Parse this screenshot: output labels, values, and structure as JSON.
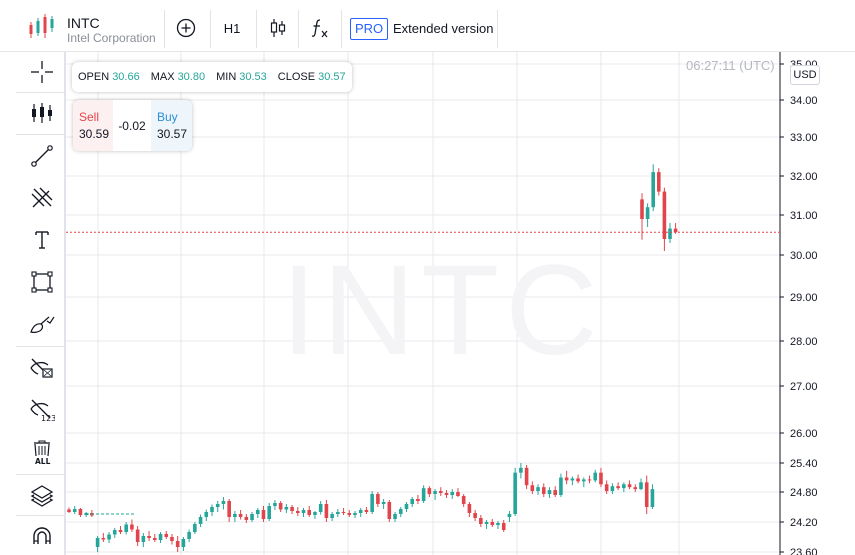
{
  "header": {
    "ticker": "INTC",
    "company": "Intel Corporation",
    "interval": "H1",
    "pro_badge": "PRO",
    "extended_label": "Extended version"
  },
  "toolbar_icons": [
    "crosshair-icon",
    "indicators-icon",
    "trend-line-icon",
    "pitchfork-icon",
    "text-icon",
    "rectangle-icon",
    "brush-icon",
    "hide-drawings-icon",
    "hide-indicators-icon",
    "delete-all-icon",
    "layers-icon",
    "magnet-icon"
  ],
  "chart": {
    "watermark": "INTC",
    "clock": "06:27:11 (UTC)",
    "currency": "USD",
    "ohlc": {
      "open_label": "OPEN",
      "open": "30.66",
      "max_label": "MAX",
      "max": "30.80",
      "min_label": "MIN",
      "min": "30.53",
      "close_label": "CLOSE",
      "close": "30.57"
    },
    "trade": {
      "sell_label": "Sell",
      "sell_price": "30.59",
      "spread": "-0.02",
      "buy_label": "Buy",
      "buy_price": "30.57"
    },
    "price_line": 30.57,
    "colors": {
      "up": "#26a69a",
      "down": "#e0454b",
      "brand_red": "#e0454b",
      "brand_green": "#26a69a",
      "accent": "#2962ff"
    }
  },
  "chart_data": {
    "type": "candlestick",
    "y_ticks": [
      "23.60",
      "24.20",
      "24.80",
      "25.40",
      "26.00",
      "27.00",
      "28.00",
      "29.00",
      "30.00",
      "31.00",
      "32.00",
      "33.00",
      "34.00",
      "35.00"
    ],
    "candles": [
      [
        24.45,
        24.49,
        24.38,
        24.4
      ],
      [
        24.4,
        24.52,
        24.36,
        24.46
      ],
      [
        24.46,
        24.48,
        24.3,
        24.34
      ],
      [
        24.34,
        24.4,
        24.3,
        24.38
      ],
      [
        24.38,
        24.44,
        24.3,
        24.33
      ],
      [
        23.7,
        23.92,
        23.6,
        23.88
      ],
      [
        23.88,
        23.98,
        23.8,
        23.85
      ],
      [
        23.85,
        24.0,
        23.78,
        23.95
      ],
      [
        23.95,
        24.08,
        23.88,
        24.04
      ],
      [
        24.04,
        24.12,
        23.96,
        24.0
      ],
      [
        24.0,
        24.2,
        23.95,
        24.15
      ],
      [
        24.15,
        24.25,
        24.0,
        24.05
      ],
      [
        24.05,
        24.12,
        23.72,
        23.8
      ],
      [
        23.8,
        23.98,
        23.7,
        23.92
      ],
      [
        23.92,
        24.02,
        23.82,
        23.88
      ],
      [
        23.88,
        23.96,
        23.8,
        23.84
      ],
      [
        23.84,
        24.0,
        23.78,
        23.96
      ],
      [
        23.96,
        24.02,
        23.86,
        23.9
      ],
      [
        23.9,
        23.96,
        23.75,
        23.82
      ],
      [
        23.82,
        23.92,
        23.6,
        23.7
      ],
      [
        23.7,
        23.9,
        23.62,
        23.86
      ],
      [
        23.86,
        24.05,
        23.8,
        24.0
      ],
      [
        24.0,
        24.2,
        23.96,
        24.16
      ],
      [
        24.16,
        24.35,
        24.1,
        24.3
      ],
      [
        24.3,
        24.45,
        24.22,
        24.4
      ],
      [
        24.4,
        24.55,
        24.32,
        24.5
      ],
      [
        24.5,
        24.62,
        24.4,
        24.56
      ],
      [
        24.56,
        24.7,
        24.45,
        24.62
      ],
      [
        24.62,
        24.66,
        24.2,
        24.3
      ],
      [
        24.3,
        24.42,
        24.2,
        24.36
      ],
      [
        24.36,
        24.44,
        24.25,
        24.3
      ],
      [
        24.3,
        24.36,
        24.18,
        24.24
      ],
      [
        24.24,
        24.4,
        24.2,
        24.36
      ],
      [
        24.36,
        24.48,
        24.28,
        24.44
      ],
      [
        24.44,
        24.52,
        24.2,
        24.26
      ],
      [
        24.26,
        24.58,
        24.22,
        24.52
      ],
      [
        24.52,
        24.64,
        24.44,
        24.58
      ],
      [
        24.58,
        24.62,
        24.4,
        24.45
      ],
      [
        24.45,
        24.56,
        24.38,
        24.5
      ],
      [
        24.5,
        24.54,
        24.36,
        24.42
      ],
      [
        24.42,
        24.5,
        24.32,
        24.38
      ],
      [
        24.38,
        24.48,
        24.3,
        24.44
      ],
      [
        24.44,
        24.52,
        24.3,
        24.34
      ],
      [
        24.34,
        24.42,
        24.26,
        24.4
      ],
      [
        24.4,
        24.62,
        24.35,
        24.56
      ],
      [
        24.56,
        24.64,
        24.2,
        24.28
      ],
      [
        24.28,
        24.4,
        24.22,
        24.36
      ],
      [
        24.36,
        24.46,
        24.3,
        24.4
      ],
      [
        24.4,
        24.48,
        24.34,
        24.38
      ],
      [
        24.38,
        24.44,
        24.3,
        24.34
      ],
      [
        24.34,
        24.42,
        24.28,
        24.38
      ],
      [
        24.38,
        24.48,
        24.3,
        24.44
      ],
      [
        24.44,
        24.5,
        24.36,
        24.4
      ],
      [
        24.4,
        24.82,
        24.36,
        24.76
      ],
      [
        24.76,
        24.8,
        24.5,
        24.56
      ],
      [
        24.56,
        24.66,
        24.46,
        24.6
      ],
      [
        24.6,
        24.64,
        24.2,
        24.26
      ],
      [
        24.26,
        24.4,
        24.2,
        24.36
      ],
      [
        24.36,
        24.5,
        24.3,
        24.46
      ],
      [
        24.46,
        24.6,
        24.4,
        24.56
      ],
      [
        24.56,
        24.7,
        24.5,
        24.66
      ],
      [
        24.66,
        24.74,
        24.56,
        24.62
      ],
      [
        24.62,
        24.94,
        24.58,
        24.88
      ],
      [
        24.88,
        24.92,
        24.7,
        24.76
      ],
      [
        24.76,
        24.86,
        24.64,
        24.82
      ],
      [
        24.82,
        24.9,
        24.72,
        24.78
      ],
      [
        24.78,
        24.84,
        24.68,
        24.74
      ],
      [
        24.74,
        24.86,
        24.66,
        24.8
      ],
      [
        24.8,
        24.88,
        24.7,
        24.72
      ],
      [
        24.72,
        24.76,
        24.5,
        24.56
      ],
      [
        24.56,
        24.6,
        24.3,
        24.38
      ],
      [
        24.38,
        24.44,
        24.22,
        24.28
      ],
      [
        24.28,
        24.34,
        24.1,
        24.16
      ],
      [
        24.16,
        24.24,
        24.06,
        24.2
      ],
      [
        24.2,
        24.26,
        24.1,
        24.14
      ],
      [
        24.14,
        24.22,
        24.06,
        24.18
      ],
      [
        24.18,
        24.24,
        24.0,
        24.04
      ],
      [
        24.3,
        24.42,
        24.2,
        24.36
      ],
      [
        24.36,
        25.3,
        24.32,
        25.2
      ],
      [
        25.2,
        25.4,
        25.08,
        25.3
      ],
      [
        25.3,
        25.36,
        24.86,
        24.94
      ],
      [
        24.94,
        25.02,
        24.76,
        24.82
      ],
      [
        24.82,
        24.96,
        24.74,
        24.9
      ],
      [
        24.9,
        24.98,
        24.7,
        24.76
      ],
      [
        24.76,
        24.9,
        24.68,
        24.84
      ],
      [
        24.84,
        24.92,
        24.7,
        24.74
      ],
      [
        24.74,
        25.18,
        24.7,
        25.1
      ],
      [
        25.1,
        25.24,
        24.96,
        25.04
      ],
      [
        25.04,
        25.12,
        24.94,
        25.08
      ],
      [
        25.08,
        25.16,
        24.98,
        25.02
      ],
      [
        25.02,
        25.1,
        24.9,
        25.06
      ],
      [
        25.06,
        25.14,
        24.98,
        25.04
      ],
      [
        25.04,
        25.26,
        25.0,
        25.2
      ],
      [
        25.2,
        25.3,
        24.9,
        24.96
      ],
      [
        24.96,
        25.04,
        24.76,
        24.82
      ],
      [
        24.82,
        24.98,
        24.76,
        24.92
      ],
      [
        24.92,
        25.0,
        24.84,
        24.88
      ],
      [
        24.88,
        25.0,
        24.8,
        24.96
      ],
      [
        24.96,
        25.04,
        24.86,
        24.9
      ],
      [
        24.9,
        24.96,
        24.8,
        24.86
      ],
      [
        24.86,
        25.08,
        24.84,
        25.0
      ],
      [
        25.0,
        25.14,
        24.36,
        24.5
      ],
      [
        24.5,
        24.96,
        24.46,
        24.86
      ],
      [
        31.4,
        31.56,
        30.38,
        30.9
      ],
      [
        30.9,
        31.3,
        30.7,
        31.2
      ],
      [
        31.2,
        32.3,
        31.1,
        32.1
      ],
      [
        32.1,
        32.2,
        31.5,
        31.6
      ],
      [
        31.6,
        31.7,
        30.1,
        30.4
      ],
      [
        30.4,
        30.8,
        30.3,
        30.66
      ],
      [
        30.66,
        30.8,
        30.53,
        30.57
      ]
    ]
  }
}
